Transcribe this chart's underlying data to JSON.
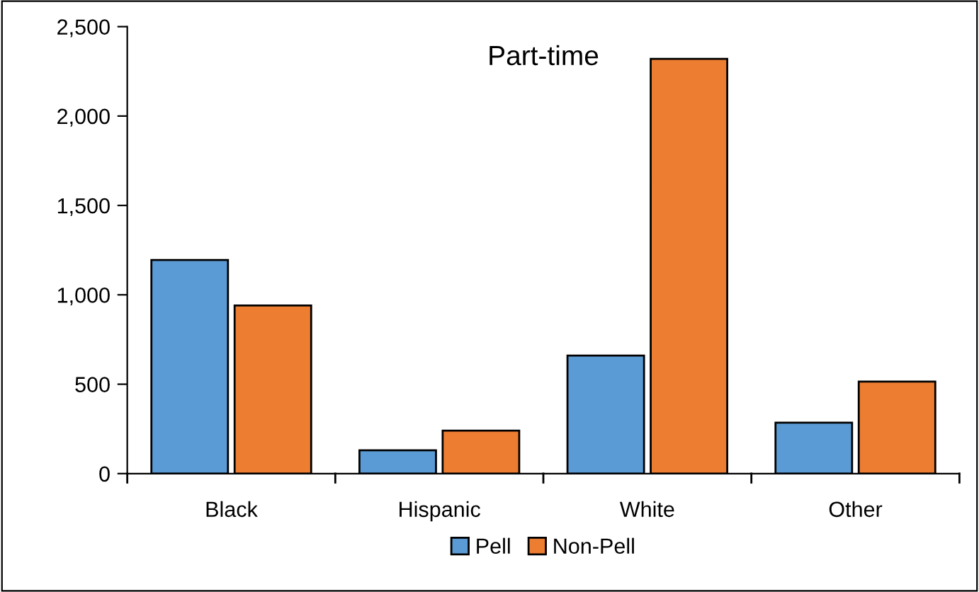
{
  "chart_data": {
    "type": "bar",
    "title": "Part-time",
    "categories": [
      "Black",
      "Hispanic",
      "White",
      "Other"
    ],
    "series": [
      {
        "name": "Pell",
        "color": "#5b9bd5",
        "values": [
          1195,
          130,
          660,
          285
        ]
      },
      {
        "name": "Non-Pell",
        "color": "#ed7d31",
        "values": [
          940,
          240,
          2320,
          515
        ]
      }
    ],
    "ylim": [
      0,
      2500
    ],
    "yticks": [
      {
        "value": 0,
        "label": "0"
      },
      {
        "value": 500,
        "label": "500"
      },
      {
        "value": 1000,
        "label": "1,000"
      },
      {
        "value": 1500,
        "label": "1,500"
      },
      {
        "value": 2000,
        "label": "2,000"
      },
      {
        "value": 2500,
        "label": "2,500"
      }
    ],
    "grid": false,
    "legend": "bottom"
  }
}
